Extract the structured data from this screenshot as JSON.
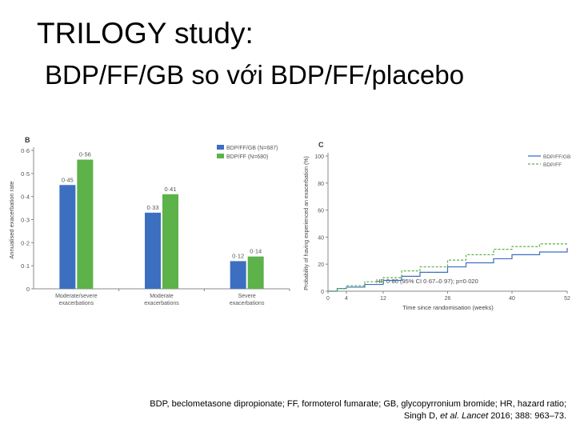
{
  "header": {
    "title": "TRILOGY study:",
    "subtitle": "BDP/FF/GB so với BDP/FF/placebo"
  },
  "chart_data": [
    {
      "panel": "B",
      "type": "bar",
      "ylabel": "Annualised exacerbation rate",
      "ylim": [
        0,
        0.6
      ],
      "yticks": [
        "0",
        "0·1",
        "0·2",
        "0·3",
        "0·4",
        "0·5",
        "0·6"
      ],
      "categories": [
        {
          "line1": "Moderate/severe",
          "line2": "exacerbations"
        },
        {
          "line1": "Moderate",
          "line2": "exacerbations"
        },
        {
          "line1": "Severe",
          "line2": "exacerbations"
        }
      ],
      "series": [
        {
          "name": "BDP/FF/GB (N=687)",
          "color": "#3d6fc1",
          "values": [
            0.45,
            0.33,
            0.12
          ],
          "labels": [
            "0·45",
            "0·33",
            "0·12"
          ]
        },
        {
          "name": "BDP/FF (N=680)",
          "color": "#5db24a",
          "values": [
            0.56,
            0.41,
            0.14
          ],
          "labels": [
            "0·56",
            "0·41",
            "0·14"
          ]
        }
      ]
    },
    {
      "panel": "C",
      "type": "line",
      "ylabel": "Probability of having experienced an exacerbation (%)",
      "xlabel": "Time since randomisation (weeks)",
      "xlim": [
        0,
        52
      ],
      "ylim": [
        0,
        100
      ],
      "xticks": [
        0,
        4,
        12,
        26,
        40,
        52
      ],
      "yticks": [
        0,
        20,
        40,
        60,
        80,
        100
      ],
      "annotation": "HR 0·80 (95% CI 0·67–0·97); p=0·020",
      "series": [
        {
          "name": "BDP/FF/GB",
          "color": "#3d6fc1",
          "style": "solid",
          "x": [
            0,
            2,
            4,
            8,
            12,
            16,
            20,
            26,
            30,
            36,
            40,
            46,
            52
          ],
          "y": [
            0,
            2,
            3,
            5,
            8,
            11,
            14,
            18,
            21,
            24,
            27,
            29,
            32
          ]
        },
        {
          "name": "BDP/FF",
          "color": "#5db24a",
          "style": "dashed",
          "x": [
            0,
            2,
            4,
            8,
            12,
            16,
            20,
            26,
            30,
            36,
            40,
            46,
            52
          ],
          "y": [
            0,
            2,
            4,
            7,
            10,
            15,
            18,
            23,
            27,
            31,
            33,
            35,
            36
          ]
        }
      ]
    }
  ],
  "footer": {
    "line1": "BDP, beclometasone dipropionate; FF, formoterol fumarate; GB, glycopyrronium bromide; HR, hazard ratio;",
    "line2_prefix": "Singh D,",
    "line2_etal": "et al.",
    "line2_journal": "Lancet",
    "line2_suffix": "2016; 388: 963–73."
  }
}
